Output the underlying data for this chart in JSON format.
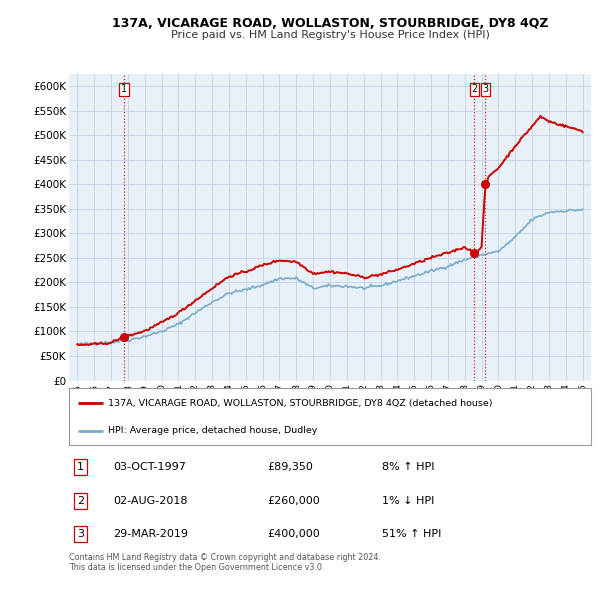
{
  "title": "137A, VICARAGE ROAD, WOLLASTON, STOURBRIDGE, DY8 4QZ",
  "subtitle": "Price paid vs. HM Land Registry's House Price Index (HPI)",
  "legend_line1": "137A, VICARAGE ROAD, WOLLASTON, STOURBRIDGE, DY8 4QZ (detached house)",
  "legend_line2": "HPI: Average price, detached house, Dudley",
  "footnote1": "Contains HM Land Registry data © Crown copyright and database right 2024.",
  "footnote2": "This data is licensed under the Open Government Licence v3.0.",
  "transactions": [
    {
      "num": 1,
      "date": "03-OCT-1997",
      "price": 89350,
      "price_str": "£89,350",
      "pct": "8%",
      "dir": "↑",
      "year": 1997.75
    },
    {
      "num": 2,
      "date": "02-AUG-2018",
      "price": 260000,
      "price_str": "£260,000",
      "pct": "1%",
      "dir": "↓",
      "year": 2018.58
    },
    {
      "num": 3,
      "date": "29-MAR-2019",
      "price": 400000,
      "price_str": "£400,000",
      "pct": "51%",
      "dir": "↑",
      "year": 2019.23
    }
  ],
  "price_line_color": "#cc0000",
  "hpi_line_color": "#7aadcc",
  "vline_color": "#cc0000",
  "dot_color": "#cc0000",
  "grid_color": "#c8d8e8",
  "background_color": "#e8f0f8",
  "ylim": [
    0,
    625000
  ],
  "yticks": [
    0,
    50000,
    100000,
    150000,
    200000,
    250000,
    300000,
    350000,
    400000,
    450000,
    500000,
    550000,
    600000
  ],
  "ytick_labels": [
    "£0",
    "£50K",
    "£100K",
    "£150K",
    "£200K",
    "£250K",
    "£300K",
    "£350K",
    "£400K",
    "£450K",
    "£500K",
    "£550K",
    "£600K"
  ],
  "xlim": [
    1994.5,
    2025.5
  ],
  "xtick_years": [
    1995,
    1996,
    1997,
    1998,
    1999,
    2000,
    2001,
    2002,
    2003,
    2004,
    2005,
    2006,
    2007,
    2008,
    2009,
    2010,
    2011,
    2012,
    2013,
    2014,
    2015,
    2016,
    2017,
    2018,
    2019,
    2020,
    2021,
    2022,
    2023,
    2024,
    2025
  ]
}
